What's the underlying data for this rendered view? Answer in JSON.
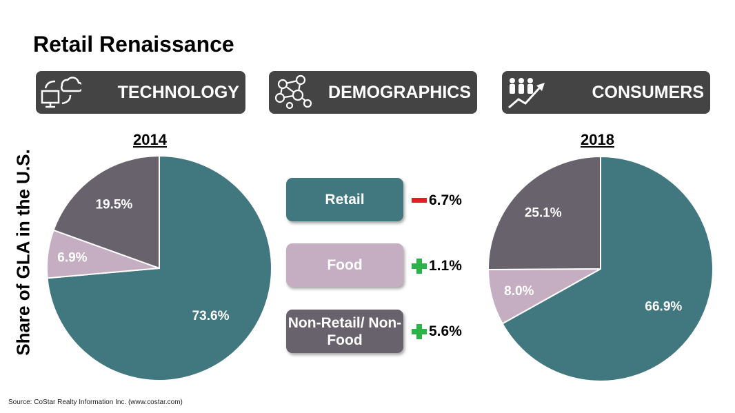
{
  "title": "Retail Renaissance",
  "banners": [
    {
      "label": "TECHNOLOGY",
      "icon": "cloud-computer-icon"
    },
    {
      "label": "DEMOGRAPHICS",
      "icon": "people-network-icon"
    },
    {
      "label": "CONSUMERS",
      "icon": "people-growth-arrow-icon"
    }
  ],
  "y_axis_label": "Share of GLA in the U.S.",
  "colors": {
    "Retail": "#417880",
    "Food": "#c5aec1",
    "Non-Retail/ Non-Food": "#67626c",
    "banner": "#444444",
    "minus": "#e41c24",
    "plus": "#2bb34a"
  },
  "legend": [
    {
      "label": "Retail",
      "change": "6.7%",
      "sign": "minus"
    },
    {
      "label": "Food",
      "change": "1.1%",
      "sign": "plus"
    },
    {
      "label": "Non-Retail/ Non-Food",
      "change": "5.6%",
      "sign": "plus"
    }
  ],
  "chart_data": [
    {
      "type": "pie",
      "title": "2014",
      "categories": [
        "Retail",
        "Food",
        "Non-Retail/ Non-Food"
      ],
      "values": [
        73.6,
        6.9,
        19.5
      ],
      "labels": [
        "73.6%",
        "6.9%",
        "19.5%"
      ]
    },
    {
      "type": "pie",
      "title": "2018",
      "categories": [
        "Retail",
        "Food",
        "Non-Retail/ Non-Food"
      ],
      "values": [
        66.9,
        8.0,
        25.1
      ],
      "labels": [
        "66.9%",
        "8.0%",
        "25.1%"
      ]
    }
  ],
  "source": "Source:  CoStar Realty Information Inc. (www.costar.com)"
}
